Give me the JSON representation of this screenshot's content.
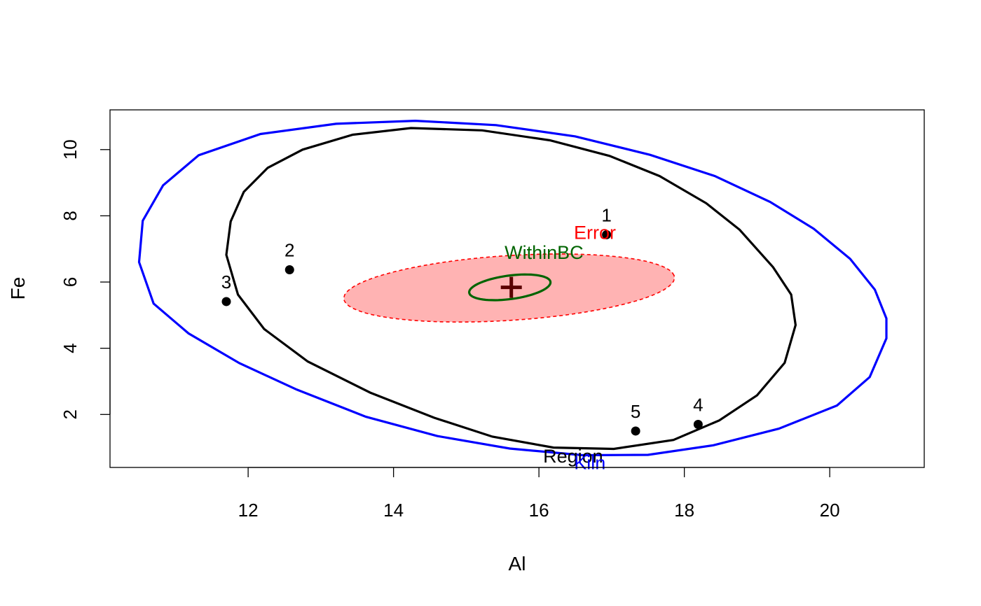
{
  "chart_data": {
    "type": "scatter",
    "title": "",
    "xlabel": "Al",
    "ylabel": "Fe",
    "xlim": [
      10.1,
      21.3
    ],
    "ylim": [
      0.4,
      11.2
    ],
    "x_ticks": [
      "12",
      "14",
      "16",
      "18",
      "20"
    ],
    "y_ticks": [
      "2",
      "4",
      "6",
      "8",
      "10"
    ],
    "grid": false,
    "points": [
      {
        "label": "1",
        "x": 16.93,
        "y": 7.43
      },
      {
        "label": "2",
        "x": 12.57,
        "y": 6.37
      },
      {
        "label": "3",
        "x": 11.7,
        "y": 5.41
      },
      {
        "label": "4",
        "x": 18.19,
        "y": 1.7
      },
      {
        "label": "5",
        "x": 17.33,
        "y": 1.5
      }
    ],
    "center": {
      "x": 15.62,
      "y": 5.84
    },
    "ellipses": [
      {
        "name": "Kiln",
        "color": "#0000ff",
        "fill": "none",
        "dashed": false,
        "outline": [
          [
            10.5,
            6.6
          ],
          [
            10.7,
            5.35
          ],
          [
            11.18,
            4.45
          ],
          [
            11.88,
            3.55
          ],
          [
            12.67,
            2.75
          ],
          [
            13.62,
            1.93
          ],
          [
            14.6,
            1.35
          ],
          [
            15.6,
            0.97
          ],
          [
            16.6,
            0.77
          ],
          [
            17.5,
            0.78
          ],
          [
            18.4,
            1.07
          ],
          [
            19.3,
            1.57
          ],
          [
            20.1,
            2.27
          ],
          [
            20.55,
            3.13
          ],
          [
            20.78,
            4.3
          ],
          [
            20.78,
            4.9
          ],
          [
            20.62,
            5.77
          ],
          [
            20.28,
            6.7
          ],
          [
            19.78,
            7.61
          ],
          [
            19.18,
            8.42
          ],
          [
            18.42,
            9.2
          ],
          [
            17.53,
            9.84
          ],
          [
            16.5,
            10.4
          ],
          [
            15.41,
            10.74
          ],
          [
            14.3,
            10.87
          ],
          [
            13.21,
            10.78
          ],
          [
            12.17,
            10.47
          ],
          [
            11.32,
            9.83
          ],
          [
            10.83,
            8.92
          ],
          [
            10.55,
            7.85
          ]
        ]
      },
      {
        "name": "Region",
        "color": "#000000",
        "fill": "none",
        "dashed": false,
        "outline": [
          [
            11.7,
            6.82
          ],
          [
            11.86,
            5.62
          ],
          [
            12.22,
            4.58
          ],
          [
            12.82,
            3.6
          ],
          [
            13.68,
            2.66
          ],
          [
            14.56,
            1.9
          ],
          [
            15.36,
            1.33
          ],
          [
            16.2,
            1.0
          ],
          [
            17.03,
            0.96
          ],
          [
            17.85,
            1.23
          ],
          [
            18.48,
            1.82
          ],
          [
            19.0,
            2.58
          ],
          [
            19.38,
            3.56
          ],
          [
            19.53,
            4.7
          ],
          [
            19.47,
            5.62
          ],
          [
            19.22,
            6.45
          ],
          [
            18.76,
            7.58
          ],
          [
            18.3,
            8.38
          ],
          [
            17.66,
            9.2
          ],
          [
            16.97,
            9.81
          ],
          [
            16.15,
            10.28
          ],
          [
            15.22,
            10.58
          ],
          [
            14.24,
            10.65
          ],
          [
            13.44,
            10.45
          ],
          [
            12.75,
            10.0
          ],
          [
            12.27,
            9.45
          ],
          [
            11.94,
            8.72
          ],
          [
            11.76,
            7.83
          ]
        ]
      },
      {
        "name": "Error",
        "color": "#ff0000",
        "fill": "#ffb3b3",
        "dashed": true,
        "cx": 15.59,
        "cy": 5.82,
        "rx": 2.3,
        "ry": 0.97,
        "angle": 0.165
      },
      {
        "name": "WithinBC",
        "color": "#006400",
        "fill": "none",
        "dashed": false,
        "cx": 15.6,
        "cy": 5.84,
        "rx": 0.59,
        "ry": 0.34,
        "angle": 0.4
      }
    ],
    "labels": [
      {
        "text": "Error",
        "x": 16.77,
        "y": 7.3,
        "color": "#ff0000"
      },
      {
        "text": "WithinBC",
        "x": 16.07,
        "y": 6.7,
        "color": "#006400"
      },
      {
        "text": "Region",
        "x": 16.47,
        "y": 0.55,
        "color": "#000000"
      },
      {
        "text": "Kiln",
        "x": 16.7,
        "y": 0.35,
        "color": "#0000ff"
      }
    ]
  }
}
